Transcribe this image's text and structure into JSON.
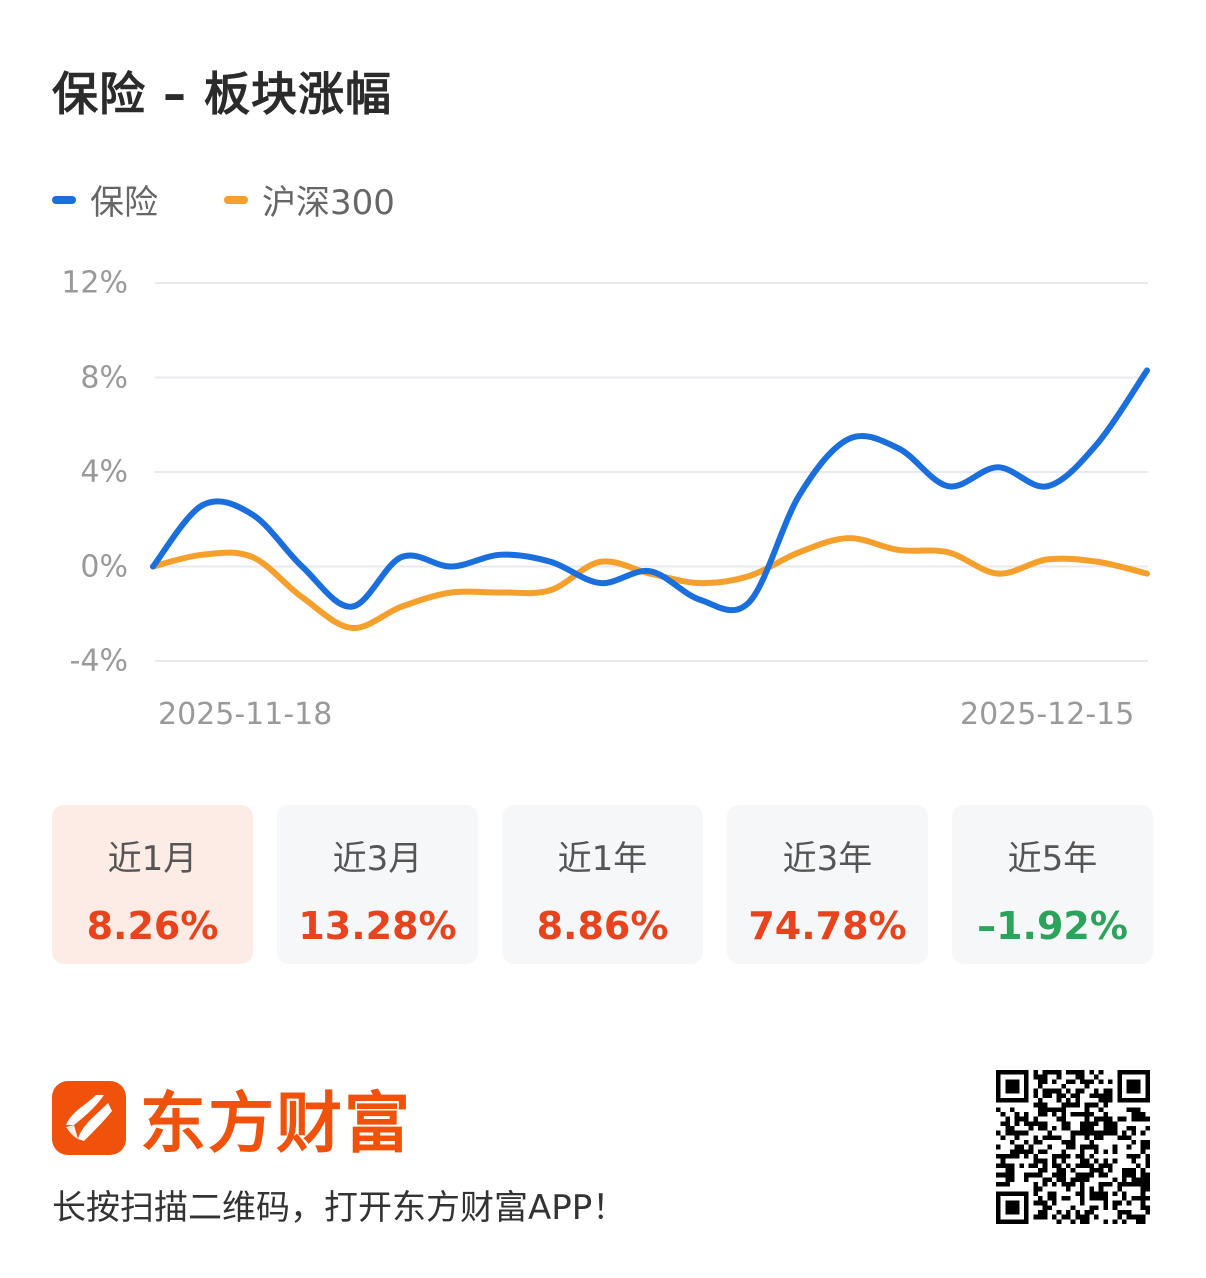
{
  "header": {
    "title": "保险 – 板块涨幅"
  },
  "legend": [
    {
      "label": "保险",
      "color": "#1a6fdc"
    },
    {
      "label": "沪深300",
      "color": "#f5a02c"
    }
  ],
  "chart_data": {
    "type": "line",
    "title": "保险 – 板块涨幅",
    "xlabel": "",
    "ylabel": "",
    "x_start_label": "2025-11-18",
    "x_end_label": "2025-12-15",
    "ylim": [
      -4,
      12
    ],
    "yticks": [
      "12%",
      "8%",
      "4%",
      "0%",
      "-4%"
    ],
    "grid": true,
    "legend_position": "top-left",
    "x": [
      0,
      1,
      2,
      3,
      4,
      5,
      6,
      7,
      8,
      9,
      10,
      11,
      12,
      13,
      14,
      15,
      16,
      17,
      18,
      19,
      20
    ],
    "series": [
      {
        "name": "保险",
        "color": "#1a6fdc",
        "values": [
          0.0,
          2.6,
          2.2,
          0.0,
          -1.7,
          0.4,
          0.0,
          0.5,
          0.2,
          -0.7,
          -0.2,
          -1.4,
          -1.5,
          3.0,
          5.4,
          5.0,
          3.4,
          4.2,
          3.4,
          5.2,
          8.3
        ]
      },
      {
        "name": "沪深300",
        "color": "#f5a02c",
        "values": [
          0.0,
          0.5,
          0.4,
          -1.3,
          -2.6,
          -1.7,
          -1.1,
          -1.1,
          -1.0,
          0.2,
          -0.3,
          -0.7,
          -0.4,
          0.6,
          1.2,
          0.7,
          0.6,
          -0.3,
          0.3,
          0.2,
          -0.3
        ]
      }
    ]
  },
  "periods": [
    {
      "label": "近1月",
      "value": "8.26%",
      "color": "#e8431c",
      "active": true
    },
    {
      "label": "近3月",
      "value": "13.28%",
      "color": "#e8431c",
      "active": false
    },
    {
      "label": "近1年",
      "value": "8.86%",
      "color": "#e8431c",
      "active": false
    },
    {
      "label": "近3年",
      "value": "74.78%",
      "color": "#e8431c",
      "active": false
    },
    {
      "label": "近5年",
      "value": "–1.92%",
      "color": "#2ba35a",
      "active": false
    }
  ],
  "footer": {
    "brand_name": "东方财富",
    "brand_color": "#f0520c",
    "tagline": "长按扫描二维码，打开东方财富APP！",
    "qr_icon": "qr-code-icon"
  }
}
